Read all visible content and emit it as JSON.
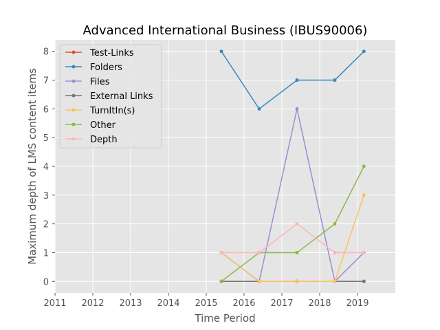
{
  "chart_data": {
    "type": "line",
    "title": "Advanced International Business (IBUS90006)",
    "xlabel": "Time Period",
    "ylabel": "Maximum depth of LMS content items",
    "xlim": [
      2011,
      2020.0
    ],
    "ylim": [
      -0.4,
      8.4
    ],
    "xticks": [
      2011,
      2012,
      2013,
      2014,
      2015,
      2016,
      2017,
      2018,
      2019
    ],
    "yticks": [
      0,
      1,
      2,
      3,
      4,
      5,
      6,
      7,
      8
    ],
    "grid": true,
    "legend_position": "top-left",
    "x": [
      2015.4,
      2016.4,
      2017.4,
      2018.4,
      2019.17
    ],
    "series": [
      {
        "name": "Test-Links",
        "color": "#e24a33",
        "values": [
          0,
          0,
          0,
          0,
          0
        ]
      },
      {
        "name": "Folders",
        "color": "#348abd",
        "values": [
          8,
          6,
          7,
          7,
          8
        ]
      },
      {
        "name": "Files",
        "color": "#988ed5",
        "values": [
          1,
          0,
          6,
          0,
          1
        ]
      },
      {
        "name": "External Links",
        "color": "#777777",
        "values": [
          0,
          0,
          0,
          0,
          0
        ]
      },
      {
        "name": "TurnItIn(s)",
        "color": "#fbc15e",
        "values": [
          1,
          0,
          0,
          0,
          3
        ]
      },
      {
        "name": "Other",
        "color": "#8eba42",
        "values": [
          0,
          1,
          1,
          2,
          4
        ]
      },
      {
        "name": "Depth",
        "color": "#ffb5b8",
        "values": [
          1,
          1,
          2,
          1,
          1
        ]
      }
    ]
  }
}
